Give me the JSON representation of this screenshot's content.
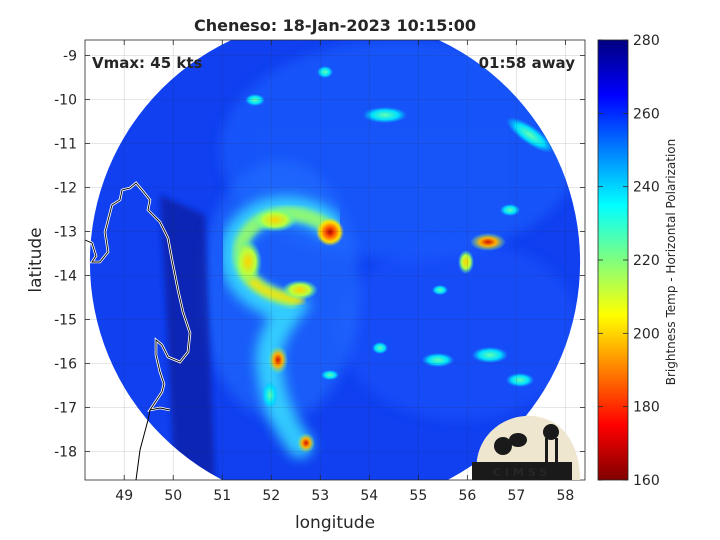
{
  "chart_data": {
    "type": "heatmap",
    "title": "Cheneso: 18-Jan-2023 10:15:00",
    "xlabel": "longitude",
    "ylabel": "latitude",
    "xlim": [
      48.2,
      58.4
    ],
    "ylim": [
      -18.65,
      -8.65
    ],
    "x_ticks": [
      49,
      50,
      51,
      52,
      53,
      54,
      55,
      56,
      57,
      58
    ],
    "y_ticks": [
      -9,
      -10,
      -11,
      -12,
      -13,
      -14,
      -15,
      -16,
      -17,
      -18
    ],
    "grid": true,
    "annotations": {
      "vmax": "Vmax: 45 kts",
      "time_away": "01:58 away"
    },
    "swath": {
      "center_lon": 53.3,
      "center_lat": -13.7,
      "radius_deg": 5.0
    },
    "colorbar": {
      "label": "Brightness Temp - Horizontal Polarization",
      "range": [
        160,
        280
      ],
      "ticks": [
        160,
        180,
        200,
        220,
        240,
        260,
        280
      ],
      "colormap": "jet"
    },
    "features": [
      {
        "name": "eyewall core",
        "lon": 53.2,
        "lat": -13.1,
        "value": 175
      },
      {
        "name": "rainband arc",
        "lon": 52.4,
        "lat": -12.9,
        "value": 205
      },
      {
        "name": "rainband west",
        "lon": 51.5,
        "lat": -13.7,
        "value": 200
      },
      {
        "name": "rainband south",
        "lon": 52.1,
        "lat": -14.5,
        "value": 205
      },
      {
        "name": "band cell",
        "lon": 52.0,
        "lat": -15.9,
        "value": 190
      },
      {
        "name": "band cell",
        "lon": 52.7,
        "lat": -17.8,
        "value": 185
      },
      {
        "name": "east convection",
        "lon": 56.3,
        "lat": -13.3,
        "value": 190
      },
      {
        "name": "east convection",
        "lon": 56.0,
        "lat": -14.0,
        "value": 215
      },
      {
        "name": "northeast band",
        "lon": 57.2,
        "lat": -10.8,
        "value": 228
      }
    ],
    "logo": "CIMSS"
  }
}
